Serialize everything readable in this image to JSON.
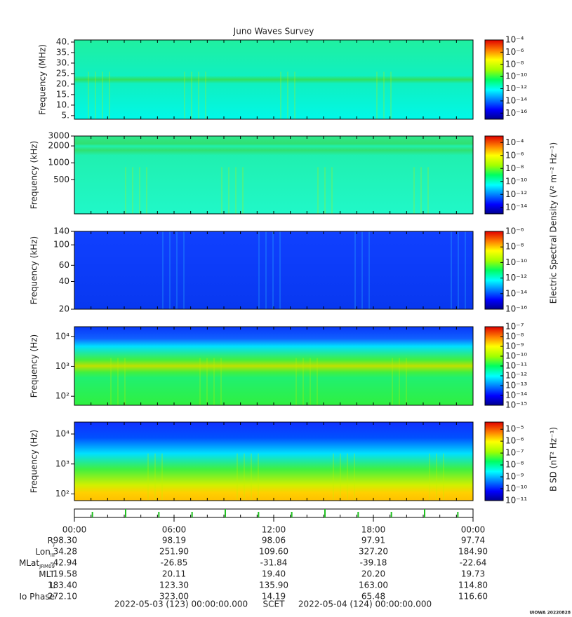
{
  "chart_data": [
    {
      "type": "spectrogram",
      "title": "Juno Waves Survey",
      "ylabel": "Frequency (MHz)",
      "log_y": false,
      "ylim": [
        3.3,
        41
      ],
      "yticks": [
        {
          "value": 5,
          "label": "5."
        },
        {
          "value": 10,
          "label": "10."
        },
        {
          "value": 15,
          "label": "15."
        },
        {
          "value": 20,
          "label": "20."
        },
        {
          "value": 25,
          "label": "25."
        },
        {
          "value": 30,
          "label": "30."
        },
        {
          "value": 35,
          "label": "35."
        },
        {
          "value": 40,
          "label": "40."
        }
      ],
      "clim": [
        1e-17,
        0.0001
      ],
      "cticks": [
        {
          "value": 0.0001,
          "label": "10⁻⁴"
        },
        {
          "value": 1e-06,
          "label": "10⁻⁶"
        },
        {
          "value": 1e-08,
          "label": "10⁻⁸"
        },
        {
          "value": 1e-10,
          "label": "10⁻¹⁰"
        },
        {
          "value": 1e-12,
          "label": "10⁻¹²"
        },
        {
          "value": 1e-14,
          "label": "10⁻¹⁴"
        },
        {
          "value": 1e-16,
          "label": "10⁻¹⁶"
        }
      ]
    },
    {
      "type": "spectrogram",
      "ylabel": "Frequency (kHz)",
      "log_y": true,
      "ylim": [
        123,
        3000
      ],
      "yticks": [
        500,
        1000,
        2000,
        3000
      ],
      "clim": [
        1e-15,
        0.001
      ],
      "cticks": [
        {
          "value": 0.0001,
          "label": "10⁻⁴"
        },
        {
          "value": 1e-06,
          "label": "10⁻⁶"
        },
        {
          "value": 1e-08,
          "label": "10⁻⁸"
        },
        {
          "value": 1e-10,
          "label": "10⁻¹⁰"
        },
        {
          "value": 1e-12,
          "label": "10⁻¹²"
        },
        {
          "value": 1e-14,
          "label": "10⁻¹⁴"
        }
      ],
      "colorbar_label": "Electric Spectral Density (V² m⁻² Hz⁻¹)"
    },
    {
      "type": "spectrogram",
      "ylabel": "Frequency (kHz)",
      "log_y": true,
      "ylim": [
        20,
        140
      ],
      "yticks": [
        20,
        40,
        60,
        100,
        140
      ],
      "clim": [
        1e-16,
        1e-06
      ],
      "cticks": [
        {
          "value": 1e-06,
          "label": "10⁻⁶"
        },
        {
          "value": 1e-08,
          "label": "10⁻⁸"
        },
        {
          "value": 1e-10,
          "label": "10⁻¹⁰"
        },
        {
          "value": 1e-12,
          "label": "10⁻¹²"
        },
        {
          "value": 1e-14,
          "label": "10⁻¹⁴"
        },
        {
          "value": 1e-16,
          "label": "10⁻¹⁶"
        }
      ]
    },
    {
      "type": "spectrogram",
      "ylabel": "Frequency (Hz)",
      "log_y": true,
      "ylim": [
        50,
        21000
      ],
      "yticks": [
        {
          "value": 100,
          "label": "10²"
        },
        {
          "value": 1000,
          "label": "10³"
        },
        {
          "value": 10000,
          "label": "10⁴"
        }
      ],
      "clim": [
        1e-15,
        1e-07
      ],
      "cticks": [
        {
          "value": 1e-07,
          "label": "10⁻⁷"
        },
        {
          "value": 1e-08,
          "label": "10⁻⁸"
        },
        {
          "value": 1e-09,
          "label": "10⁻⁹"
        },
        {
          "value": 1e-10,
          "label": "10⁻¹⁰"
        },
        {
          "value": 1e-11,
          "label": "10⁻¹¹"
        },
        {
          "value": 1e-12,
          "label": "10⁻¹²"
        },
        {
          "value": 1e-13,
          "label": "10⁻¹³"
        },
        {
          "value": 1e-14,
          "label": "10⁻¹⁴"
        },
        {
          "value": 1e-15,
          "label": "10⁻¹⁵"
        }
      ]
    },
    {
      "type": "spectrogram",
      "ylabel": "Frequency (Hz)",
      "log_y": true,
      "ylim": [
        60,
        25000
      ],
      "yticks": [
        {
          "value": 100,
          "label": "10²"
        },
        {
          "value": 1000,
          "label": "10³"
        },
        {
          "value": 10000,
          "label": "10⁴"
        }
      ],
      "clim": [
        1e-11,
        4e-05
      ],
      "cticks": [
        {
          "value": 1e-05,
          "label": "10⁻⁵"
        },
        {
          "value": 1e-06,
          "label": "10⁻⁶"
        },
        {
          "value": 1e-07,
          "label": "10⁻⁷"
        },
        {
          "value": 1e-08,
          "label": "10⁻⁸"
        },
        {
          "value": 1e-09,
          "label": "10⁻⁹"
        },
        {
          "value": 1e-10,
          "label": "10⁻¹⁰"
        },
        {
          "value": 1e-11,
          "label": "10⁻¹¹"
        }
      ],
      "colorbar_label": "B SD (nT² Hz⁻¹)"
    }
  ],
  "time_axis": {
    "xlim": [
      0,
      24
    ],
    "xticks": [
      {
        "value": 0,
        "label": "00:00"
      },
      {
        "value": 6,
        "label": "06:00"
      },
      {
        "value": 12,
        "label": "12:00"
      },
      {
        "value": 18,
        "label": "18:00"
      },
      {
        "value": 24,
        "label": "00:00"
      }
    ]
  },
  "ephemeris": [
    {
      "name": "R",
      "sub": "J",
      "values": [
        "98.30",
        "98.19",
        "98.06",
        "97.91",
        "97.74"
      ]
    },
    {
      "name": "Lon",
      "sub": "III",
      "values": [
        "34.28",
        "251.90",
        "109.60",
        "327.20",
        "184.90"
      ]
    },
    {
      "name": "MLat",
      "sub": "JRM09",
      "values": [
        "-42.94",
        "-26.85",
        "-31.84",
        "-39.18",
        "-22.64"
      ]
    },
    {
      "name": "MLT",
      "values": [
        "19.58",
        "20.11",
        "19.40",
        "20.20",
        "19.73"
      ]
    },
    {
      "name": "L",
      "values": [
        "183.40",
        "123.30",
        "135.90",
        "163.00",
        "114.80"
      ]
    },
    {
      "name": "Io Phase",
      "values": [
        "272.10",
        "323.00",
        "14.19",
        "65.48",
        "116.60"
      ]
    }
  ],
  "footer": {
    "start": "2022-05-03 (123) 00:00:00.000",
    "scet": "SCET",
    "end": "2022-05-04 (124) 00:00:00.000",
    "stamp": "UIOWA 20220828"
  }
}
